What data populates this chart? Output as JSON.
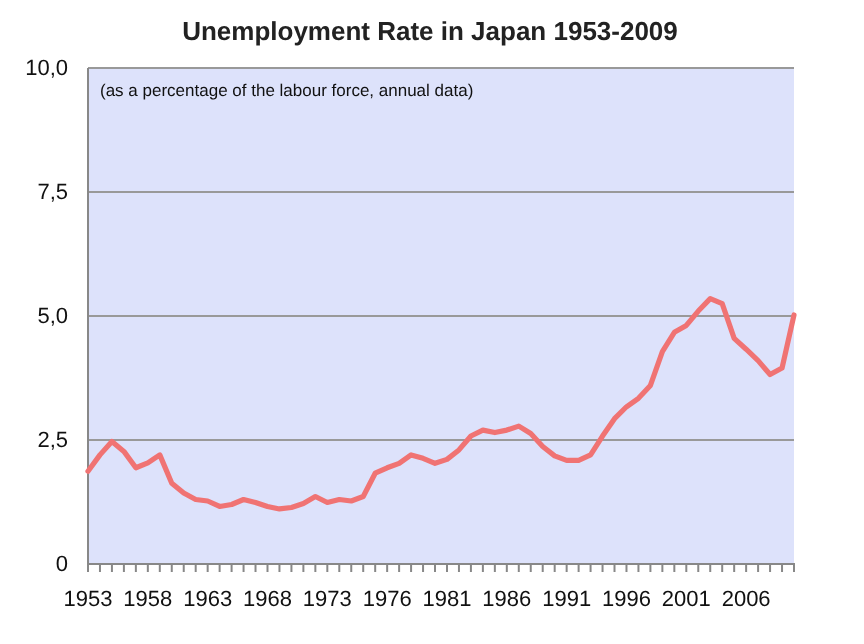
{
  "chart_data": {
    "type": "line",
    "title": "Unemployment Rate in Japan 1953-2009",
    "annotations": [
      "(as a percentage of the labour force, annual data)"
    ],
    "categories": [
      "1953",
      null,
      null,
      null,
      null,
      "1958",
      null,
      null,
      null,
      null,
      "1963",
      null,
      null,
      null,
      null,
      "1968",
      null,
      null,
      null,
      null,
      "1973",
      null,
      null,
      null,
      null,
      "1976",
      null,
      null,
      null,
      null,
      "1981",
      null,
      null,
      null,
      null,
      "1986",
      null,
      null,
      null,
      null,
      "1991",
      null,
      null,
      null,
      null,
      "1996",
      null,
      null,
      null,
      null,
      "2001",
      null,
      null,
      null,
      null,
      "2006",
      null,
      null,
      null,
      null
    ],
    "series": [
      {
        "color": "#f07373",
        "values": [
          1.87,
          2.2,
          2.47,
          2.27,
          1.94,
          2.04,
          2.2,
          1.63,
          1.43,
          1.3,
          1.27,
          1.16,
          1.2,
          1.3,
          1.24,
          1.16,
          1.11,
          1.14,
          1.22,
          1.36,
          1.24,
          1.3,
          1.27,
          1.36,
          1.83,
          1.94,
          2.03,
          2.2,
          2.13,
          2.03,
          2.11,
          2.3,
          2.58,
          2.7,
          2.65,
          2.7,
          2.78,
          2.63,
          2.37,
          2.18,
          2.09,
          2.09,
          2.2,
          2.58,
          2.93,
          3.17,
          3.34,
          3.6,
          4.28,
          4.67,
          4.81,
          5.1,
          5.35,
          5.25,
          4.55,
          4.33,
          4.1,
          3.82,
          3.95,
          5.02
        ]
      }
    ],
    "ylim": [
      0,
      10
    ],
    "yticks": [
      {
        "value": 0,
        "label": "0"
      },
      {
        "value": 2.5,
        "label": "2,5"
      },
      {
        "value": 5,
        "label": "5,0"
      },
      {
        "value": 7.5,
        "label": "7,5"
      },
      {
        "value": 10,
        "label": "10,0"
      }
    ],
    "grid": "y",
    "marker": "none",
    "line_style": "solid"
  }
}
